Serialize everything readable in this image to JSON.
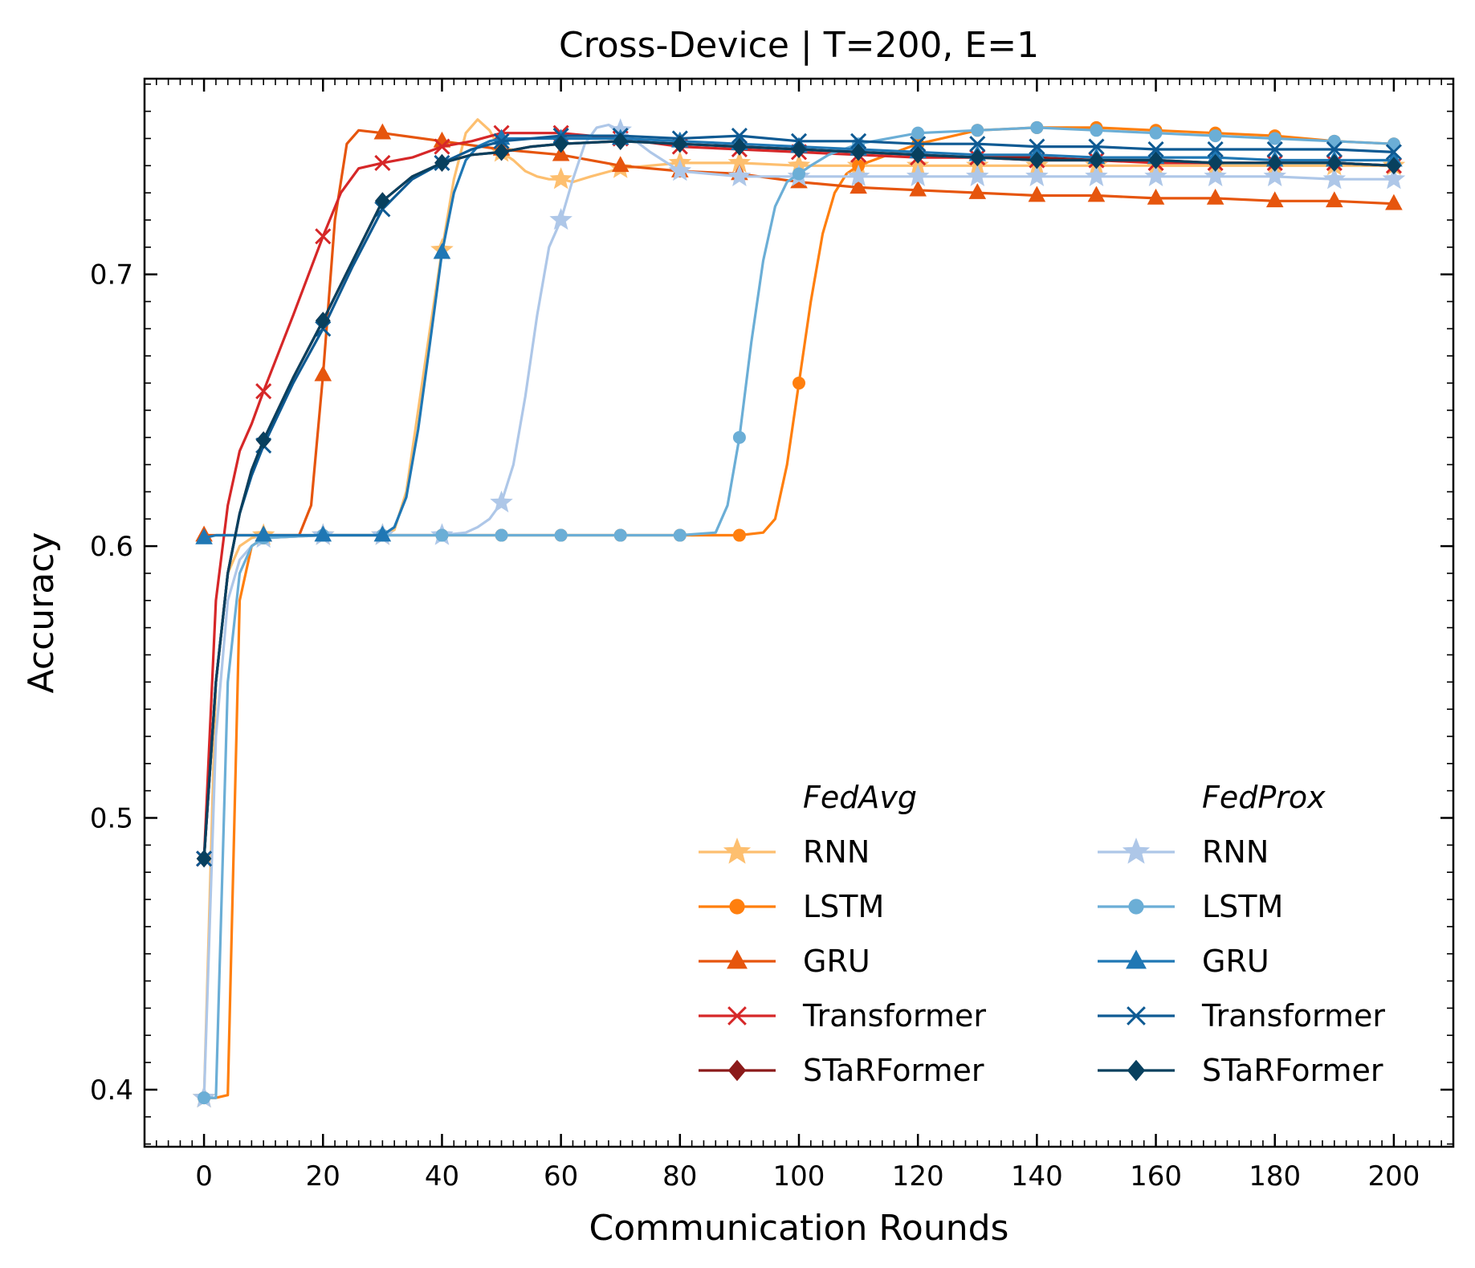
{
  "chart_data": {
    "type": "line",
    "title": "Cross-Device | T=200, E=1",
    "xlabel": "Communication Rounds",
    "ylabel": "Accuracy",
    "xlim": [
      -10,
      210
    ],
    "ylim": [
      0.379,
      0.772
    ],
    "xticks": [
      0,
      20,
      40,
      60,
      80,
      100,
      120,
      140,
      160,
      180,
      200
    ],
    "xtick_labels": [
      "0",
      "20",
      "40",
      "60",
      "80",
      "100",
      "120",
      "140",
      "160",
      "180",
      "200"
    ],
    "yticks": [
      0.4,
      0.5,
      0.6,
      0.7
    ],
    "ytick_labels": [
      "0.4",
      "0.5",
      "0.6",
      "0.7"
    ],
    "legend_groups": [
      {
        "title": "FedAvg",
        "series": [
          "fa-rnn",
          "fa-lstm",
          "fa-gru",
          "fa-transformer",
          "fa-starformer"
        ]
      },
      {
        "title": "FedProx",
        "series": [
          "fp-rnn",
          "fp-lstm",
          "fp-gru",
          "fp-transformer",
          "fp-starformer"
        ]
      }
    ],
    "legend_location": "lower-right",
    "series": [
      {
        "id": "fa-rnn",
        "group": "FedAvg",
        "name": "RNN",
        "color": "#fdbf6f",
        "marker": "star",
        "x": [
          0,
          2,
          4,
          6,
          8,
          10,
          20,
          30,
          32,
          34,
          36,
          38,
          40,
          42,
          44,
          46,
          48,
          50,
          52,
          54,
          56,
          58,
          60,
          62,
          65,
          70,
          80,
          90,
          100,
          110,
          120,
          130,
          140,
          150,
          160,
          170,
          180,
          190,
          200
        ],
        "y": [
          0.397,
          0.55,
          0.59,
          0.6,
          0.603,
          0.604,
          0.604,
          0.604,
          0.606,
          0.62,
          0.65,
          0.68,
          0.709,
          0.735,
          0.752,
          0.757,
          0.753,
          0.745,
          0.742,
          0.738,
          0.736,
          0.735,
          0.735,
          0.734,
          0.736,
          0.739,
          0.741,
          0.741,
          0.74,
          0.74,
          0.74,
          0.74,
          0.74,
          0.74,
          0.74,
          0.74,
          0.74,
          0.74,
          0.74
        ]
      },
      {
        "id": "fa-lstm",
        "group": "FedAvg",
        "name": "LSTM",
        "color": "#ff7f0e",
        "marker": "circle",
        "x": [
          0,
          2,
          4,
          6,
          8,
          10,
          20,
          30,
          40,
          50,
          60,
          70,
          80,
          90,
          94,
          96,
          98,
          100,
          102,
          104,
          106,
          108,
          110,
          115,
          120,
          130,
          140,
          150,
          160,
          170,
          180,
          190,
          200
        ],
        "y": [
          0.397,
          0.397,
          0.398,
          0.58,
          0.6,
          0.603,
          0.604,
          0.604,
          0.604,
          0.604,
          0.604,
          0.604,
          0.604,
          0.604,
          0.605,
          0.61,
          0.63,
          0.66,
          0.69,
          0.715,
          0.73,
          0.737,
          0.74,
          0.744,
          0.748,
          0.753,
          0.754,
          0.754,
          0.753,
          0.752,
          0.751,
          0.749,
          0.748
        ]
      },
      {
        "id": "fa-gru",
        "group": "FedAvg",
        "name": "GRU",
        "color": "#e6550d",
        "marker": "triangle",
        "x": [
          0,
          2,
          4,
          6,
          8,
          10,
          16,
          18,
          20,
          22,
          24,
          26,
          30,
          40,
          50,
          60,
          70,
          80,
          90,
          100,
          110,
          120,
          130,
          140,
          150,
          160,
          170,
          180,
          190,
          200
        ],
        "y": [
          0.604,
          0.604,
          0.604,
          0.604,
          0.604,
          0.604,
          0.604,
          0.615,
          0.663,
          0.72,
          0.748,
          0.753,
          0.752,
          0.749,
          0.746,
          0.744,
          0.74,
          0.738,
          0.737,
          0.734,
          0.732,
          0.731,
          0.73,
          0.729,
          0.729,
          0.728,
          0.728,
          0.727,
          0.727,
          0.726
        ]
      },
      {
        "id": "fa-transformer",
        "group": "FedAvg",
        "name": "Transformer",
        "color": "#d62728",
        "marker": "x",
        "x": [
          0,
          2,
          4,
          6,
          8,
          10,
          15,
          20,
          23,
          26,
          30,
          35,
          40,
          45,
          50,
          55,
          60,
          70,
          80,
          90,
          100,
          110,
          120,
          130,
          140,
          150,
          160,
          170,
          180,
          190,
          200
        ],
        "y": [
          0.485,
          0.58,
          0.615,
          0.635,
          0.645,
          0.657,
          0.685,
          0.714,
          0.73,
          0.739,
          0.741,
          0.743,
          0.747,
          0.749,
          0.752,
          0.752,
          0.752,
          0.75,
          0.747,
          0.746,
          0.745,
          0.744,
          0.743,
          0.743,
          0.742,
          0.742,
          0.741,
          0.741,
          0.741,
          0.741,
          0.74
        ]
      },
      {
        "id": "fa-starformer",
        "group": "FedAvg",
        "name": "STaRFormer",
        "color": "#8b1a1a",
        "marker": "diamond",
        "x": [
          0,
          2,
          4,
          6,
          8,
          10,
          15,
          20,
          25,
          30,
          35,
          40,
          45,
          50,
          55,
          60,
          70,
          80,
          90,
          100,
          110,
          120,
          130,
          140,
          150,
          160,
          170,
          180,
          190,
          200
        ],
        "y": [
          0.485,
          0.55,
          0.59,
          0.612,
          0.628,
          0.639,
          0.662,
          0.683,
          0.705,
          0.727,
          0.736,
          0.741,
          0.744,
          0.745,
          0.747,
          0.748,
          0.749,
          0.748,
          0.747,
          0.746,
          0.745,
          0.744,
          0.743,
          0.743,
          0.742,
          0.742,
          0.741,
          0.741,
          0.741,
          0.74
        ]
      },
      {
        "id": "fp-rnn",
        "group": "FedProx",
        "name": "RNN",
        "color": "#aec7e8",
        "marker": "star",
        "x": [
          0,
          2,
          4,
          6,
          8,
          10,
          20,
          30,
          40,
          44,
          46,
          48,
          50,
          52,
          54,
          56,
          58,
          60,
          62,
          64,
          66,
          68,
          70,
          72,
          75,
          80,
          90,
          100,
          110,
          120,
          130,
          140,
          150,
          160,
          170,
          180,
          190,
          200
        ],
        "y": [
          0.397,
          0.53,
          0.58,
          0.595,
          0.6,
          0.603,
          0.604,
          0.604,
          0.604,
          0.605,
          0.607,
          0.61,
          0.616,
          0.63,
          0.655,
          0.685,
          0.71,
          0.72,
          0.735,
          0.748,
          0.754,
          0.755,
          0.753,
          0.75,
          0.745,
          0.738,
          0.736,
          0.736,
          0.736,
          0.736,
          0.736,
          0.736,
          0.736,
          0.736,
          0.736,
          0.736,
          0.735,
          0.735
        ]
      },
      {
        "id": "fp-lstm",
        "group": "FedProx",
        "name": "LSTM",
        "color": "#6baed6",
        "marker": "circle",
        "x": [
          0,
          2,
          4,
          6,
          8,
          10,
          20,
          30,
          40,
          50,
          60,
          70,
          80,
          86,
          88,
          90,
          92,
          94,
          96,
          98,
          100,
          102,
          105,
          110,
          120,
          130,
          140,
          150,
          160,
          170,
          180,
          190,
          200
        ],
        "y": [
          0.397,
          0.397,
          0.55,
          0.59,
          0.6,
          0.603,
          0.604,
          0.604,
          0.604,
          0.604,
          0.604,
          0.604,
          0.604,
          0.605,
          0.615,
          0.64,
          0.675,
          0.705,
          0.725,
          0.734,
          0.737,
          0.74,
          0.744,
          0.748,
          0.752,
          0.753,
          0.754,
          0.753,
          0.752,
          0.751,
          0.75,
          0.749,
          0.748
        ]
      },
      {
        "id": "fp-gru",
        "group": "FedProx",
        "name": "GRU",
        "color": "#1f77b4",
        "marker": "triangle",
        "x": [
          0,
          2,
          10,
          20,
          30,
          32,
          34,
          36,
          38,
          40,
          42,
          44,
          46,
          48,
          50,
          55,
          60,
          70,
          80,
          90,
          100,
          110,
          120,
          130,
          140,
          150,
          160,
          170,
          180,
          190,
          200
        ],
        "y": [
          0.603,
          0.604,
          0.604,
          0.604,
          0.604,
          0.607,
          0.618,
          0.643,
          0.675,
          0.708,
          0.73,
          0.742,
          0.747,
          0.749,
          0.75,
          0.75,
          0.75,
          0.75,
          0.749,
          0.748,
          0.747,
          0.746,
          0.745,
          0.744,
          0.744,
          0.743,
          0.743,
          0.743,
          0.742,
          0.742,
          0.742
        ]
      },
      {
        "id": "fp-transformer",
        "group": "FedProx",
        "name": "Transformer",
        "color": "#0e5a93",
        "marker": "x",
        "x": [
          0,
          2,
          4,
          6,
          8,
          10,
          15,
          20,
          25,
          30,
          35,
          40,
          45,
          50,
          55,
          60,
          70,
          80,
          90,
          100,
          110,
          120,
          130,
          140,
          150,
          160,
          170,
          180,
          190,
          200
        ],
        "y": [
          0.485,
          0.55,
          0.59,
          0.612,
          0.626,
          0.637,
          0.66,
          0.68,
          0.703,
          0.724,
          0.735,
          0.741,
          0.746,
          0.749,
          0.75,
          0.751,
          0.751,
          0.75,
          0.751,
          0.749,
          0.749,
          0.748,
          0.748,
          0.747,
          0.747,
          0.746,
          0.746,
          0.746,
          0.746,
          0.745
        ]
      },
      {
        "id": "fp-starformer",
        "group": "FedProx",
        "name": "STaRFormer",
        "color": "#08405e",
        "marker": "diamond",
        "x": [
          0,
          2,
          4,
          6,
          8,
          10,
          15,
          20,
          25,
          30,
          35,
          40,
          45,
          50,
          55,
          60,
          70,
          80,
          90,
          100,
          110,
          120,
          130,
          140,
          150,
          160,
          170,
          180,
          190,
          200
        ],
        "y": [
          0.485,
          0.55,
          0.59,
          0.612,
          0.628,
          0.639,
          0.662,
          0.683,
          0.705,
          0.727,
          0.736,
          0.741,
          0.744,
          0.745,
          0.747,
          0.748,
          0.749,
          0.748,
          0.747,
          0.746,
          0.745,
          0.744,
          0.743,
          0.742,
          0.742,
          0.742,
          0.741,
          0.741,
          0.741,
          0.74
        ]
      }
    ]
  }
}
